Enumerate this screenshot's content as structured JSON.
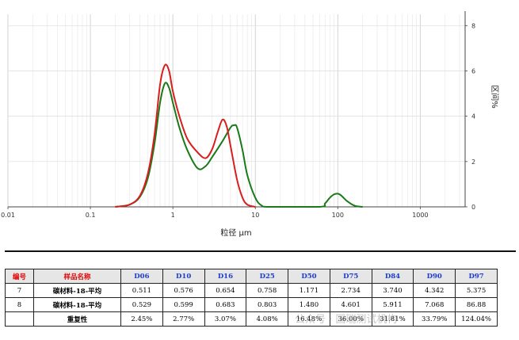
{
  "chart_data": {
    "type": "line",
    "title": "",
    "xlabel": "粒径 µm",
    "ylabel": "区间%",
    "x_scale": "log",
    "xlim": [
      0.01,
      3500
    ],
    "ylim": [
      0,
      8.5
    ],
    "x_ticks": [
      "0.01",
      "0.1",
      "1",
      "10",
      "100",
      "1000"
    ],
    "y_ticks": [
      "0",
      "2",
      "4",
      "6",
      "8"
    ],
    "grid": true,
    "series": [
      {
        "color": "#d81e1e",
        "points": [
          [
            0.2,
            0
          ],
          [
            0.3,
            0.1
          ],
          [
            0.4,
            0.5
          ],
          [
            0.5,
            1.5
          ],
          [
            0.6,
            3.2
          ],
          [
            0.7,
            5.4
          ],
          [
            0.8,
            6.25
          ],
          [
            0.9,
            6.0
          ],
          [
            1.0,
            5.1
          ],
          [
            1.2,
            4.0
          ],
          [
            1.5,
            3.0
          ],
          [
            2.0,
            2.4
          ],
          [
            2.5,
            2.15
          ],
          [
            3.0,
            2.55
          ],
          [
            3.5,
            3.3
          ],
          [
            4.0,
            3.85
          ],
          [
            4.5,
            3.55
          ],
          [
            5.0,
            2.7
          ],
          [
            6.0,
            1.2
          ],
          [
            7.0,
            0.4
          ],
          [
            8.0,
            0.1
          ],
          [
            10.0,
            0
          ]
        ]
      },
      {
        "color": "#1a7a1a",
        "points": [
          [
            0.2,
            0
          ],
          [
            0.3,
            0.1
          ],
          [
            0.4,
            0.45
          ],
          [
            0.5,
            1.3
          ],
          [
            0.6,
            2.8
          ],
          [
            0.7,
            4.6
          ],
          [
            0.8,
            5.45
          ],
          [
            0.9,
            5.25
          ],
          [
            1.0,
            4.6
          ],
          [
            1.2,
            3.5
          ],
          [
            1.5,
            2.5
          ],
          [
            2.0,
            1.7
          ],
          [
            2.5,
            1.8
          ],
          [
            3.0,
            2.2
          ],
          [
            4.0,
            2.9
          ],
          [
            5.0,
            3.5
          ],
          [
            5.5,
            3.6
          ],
          [
            6.0,
            3.5
          ],
          [
            7.0,
            2.5
          ],
          [
            8.0,
            1.4
          ],
          [
            10.0,
            0.4
          ],
          [
            12.0,
            0.05
          ],
          [
            15.0,
            0
          ],
          [
            60,
            0
          ],
          [
            70,
            0.15
          ],
          [
            80,
            0.4
          ],
          [
            90,
            0.55
          ],
          [
            100,
            0.58
          ],
          [
            110,
            0.5
          ],
          [
            130,
            0.25
          ],
          [
            160,
            0.05
          ],
          [
            200,
            0
          ]
        ]
      }
    ]
  },
  "table": {
    "headers": [
      "编号",
      "样品名称",
      "D06",
      "D10",
      "D16",
      "D25",
      "D50",
      "D75",
      "D84",
      "D90",
      "D97"
    ],
    "rows": [
      [
        "7",
        "碳材料-18-平均",
        "0.511",
        "0.576",
        "0.654",
        "0.758",
        "1.171",
        "2.734",
        "3.740",
        "4.342",
        "5.375"
      ],
      [
        "8",
        "碳材料-18-平均",
        "0.529",
        "0.599",
        "0.683",
        "0.803",
        "1.480",
        "4.601",
        "5.911",
        "7.068",
        "86.88"
      ],
      [
        "",
        "重复性",
        "2.45%",
        "2.77%",
        "3.07%",
        "4.08%",
        "16.48%",
        "36.00%",
        "31.81%",
        "33.79%",
        "124.04%"
      ]
    ]
  },
  "watermark": "公众号 · 国瑞测试机构"
}
